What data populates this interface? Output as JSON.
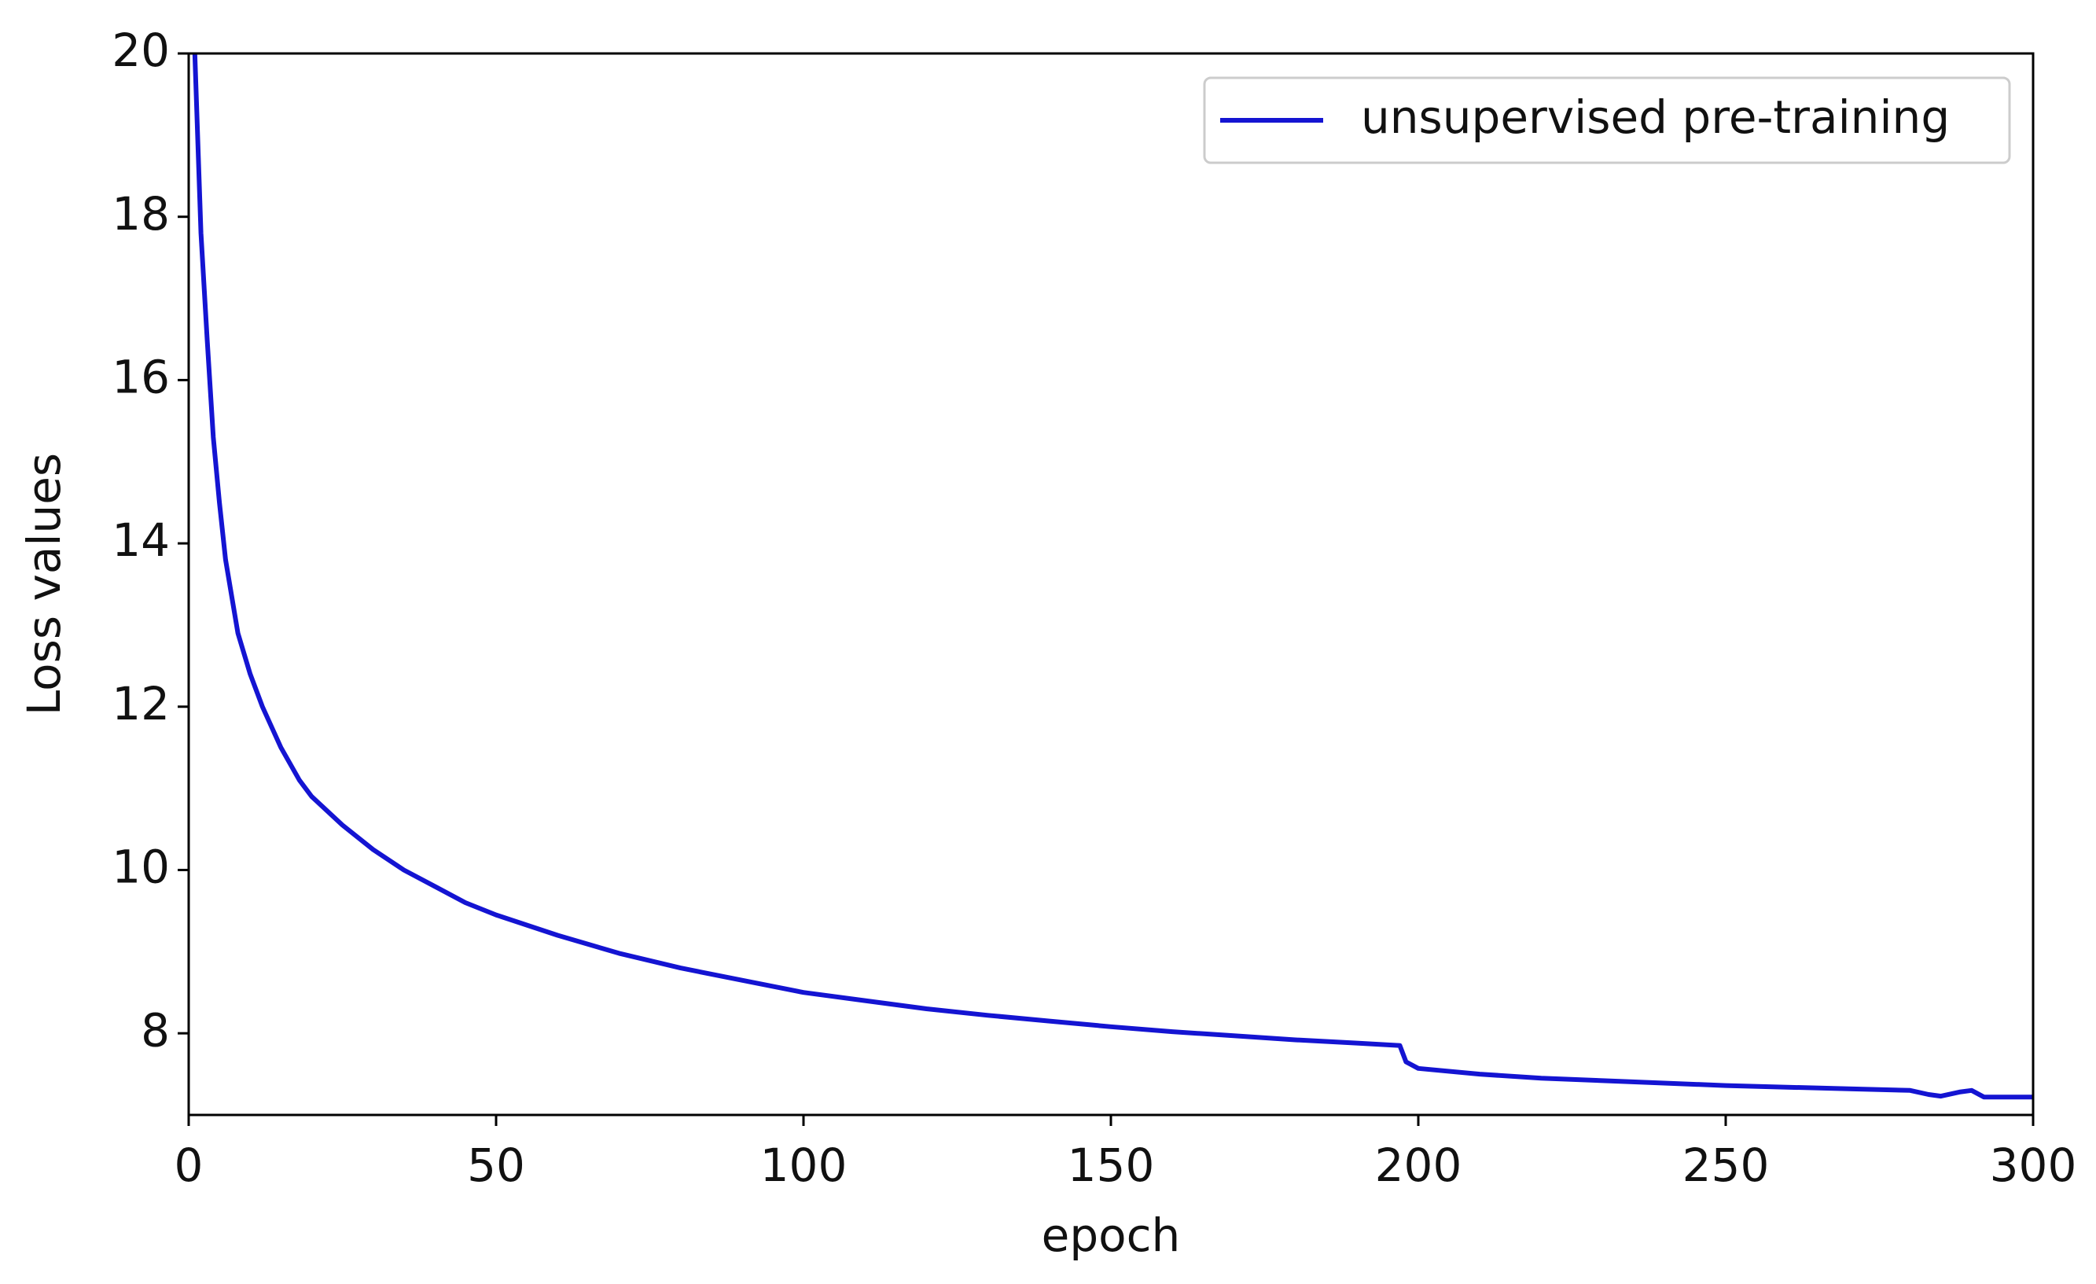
{
  "chart_data": {
    "type": "line",
    "x_label": "epoch",
    "y_label": "Loss values",
    "x": [
      1,
      2,
      3,
      4,
      5,
      6,
      8,
      10,
      12,
      15,
      18,
      20,
      25,
      30,
      35,
      40,
      45,
      50,
      60,
      70,
      80,
      90,
      100,
      110,
      120,
      130,
      140,
      150,
      160,
      170,
      180,
      190,
      197,
      198,
      200,
      210,
      220,
      230,
      240,
      250,
      260,
      270,
      280,
      283,
      285,
      288,
      290,
      292,
      300
    ],
    "series": [
      {
        "name": "unsupervised pre-training",
        "color": "#1414d2",
        "values": [
          20,
          17.8,
          16.5,
          15.3,
          14.5,
          13.8,
          12.9,
          12.4,
          12.0,
          11.5,
          11.1,
          10.9,
          10.55,
          10.25,
          10.0,
          9.8,
          9.6,
          9.45,
          9.2,
          8.98,
          8.8,
          8.65,
          8.5,
          8.4,
          8.3,
          8.22,
          8.15,
          8.08,
          8.02,
          7.97,
          7.92,
          7.88,
          7.85,
          7.65,
          7.57,
          7.5,
          7.45,
          7.42,
          7.39,
          7.36,
          7.34,
          7.32,
          7.3,
          7.25,
          7.23,
          7.28,
          7.3,
          7.22,
          7.22
        ]
      }
    ],
    "xlim": [
      0,
      300
    ],
    "xticks": [
      0,
      50,
      100,
      150,
      200,
      250,
      300
    ],
    "ylim": [
      7,
      20
    ],
    "yticks": [
      8,
      10,
      12,
      14,
      16,
      18,
      20
    ],
    "legend": "upper right",
    "grid": false
  }
}
